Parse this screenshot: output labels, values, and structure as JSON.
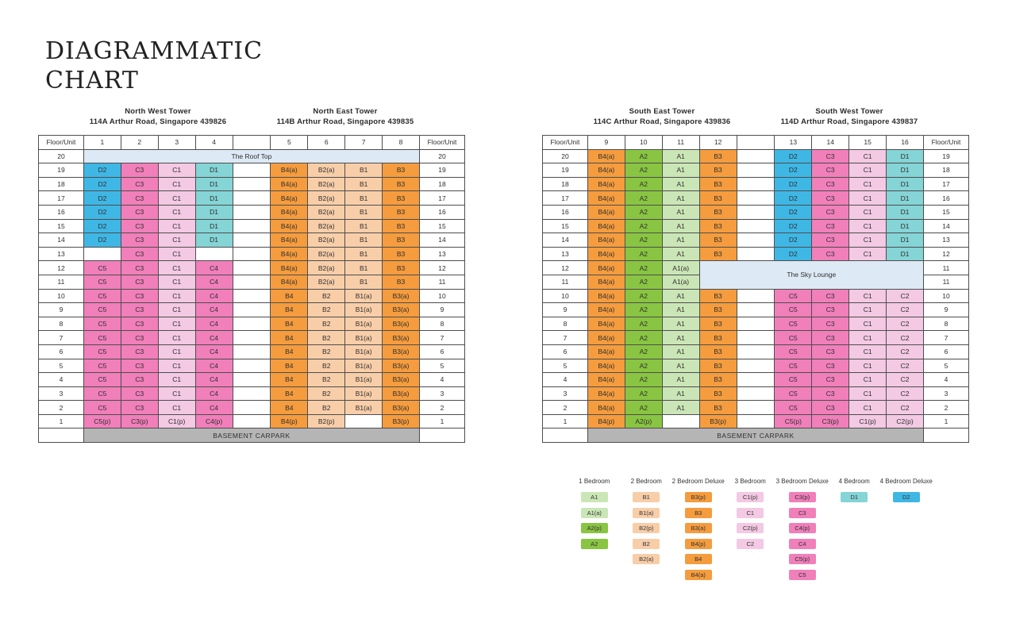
{
  "title": {
    "line1": "DIAGRAMMATIC",
    "line2": "CHART"
  },
  "palette": {
    "A1": "#cbe6b6",
    "A2": "#89c542",
    "B1": "#f8cea9",
    "B2": "#f8cea9",
    "B3": "#f59c3e",
    "B4": "#f59c3e",
    "C1": "#f3c9e3",
    "C2": "#f3c9e3",
    "C3": "#f07fba",
    "C4": "#f07fba",
    "C5": "#f07fba",
    "D1": "#85d4d6",
    "D2": "#3fb7e5",
    "banner": "#dde9f4",
    "basement": "#b5b5b5",
    "border": "#4d4d4d",
    "text": "#2f2f2f"
  },
  "floor_header": "Floor/Unit",
  "groups": [
    {
      "left_tower": {
        "name": "North West Tower",
        "address": "114A Arthur Road, Singapore 439826",
        "units": [
          "1",
          "2",
          "3",
          "4"
        ]
      },
      "right_tower": {
        "name": "North East Tower",
        "address": "114B Arthur Road, Singapore 439835",
        "units": [
          "5",
          "6",
          "7",
          "8"
        ]
      },
      "top_banner": {
        "label": "The Roof Top",
        "left_floor": "20",
        "right_floor": "20"
      },
      "rows": [
        {
          "lf": "19",
          "rf": "19",
          "left": [
            "D2",
            "C3",
            "C1",
            "D1"
          ],
          "right": [
            "B4(a)",
            "B2(a)",
            "B1",
            "B3"
          ]
        },
        {
          "lf": "18",
          "rf": "18",
          "left": [
            "D2",
            "C3",
            "C1",
            "D1"
          ],
          "right": [
            "B4(a)",
            "B2(a)",
            "B1",
            "B3"
          ]
        },
        {
          "lf": "17",
          "rf": "17",
          "left": [
            "D2",
            "C3",
            "C1",
            "D1"
          ],
          "right": [
            "B4(a)",
            "B2(a)",
            "B1",
            "B3"
          ]
        },
        {
          "lf": "16",
          "rf": "16",
          "left": [
            "D2",
            "C3",
            "C1",
            "D1"
          ],
          "right": [
            "B4(a)",
            "B2(a)",
            "B1",
            "B3"
          ]
        },
        {
          "lf": "15",
          "rf": "15",
          "left": [
            "D2",
            "C3",
            "C1",
            "D1"
          ],
          "right": [
            "B4(a)",
            "B2(a)",
            "B1",
            "B3"
          ]
        },
        {
          "lf": "14",
          "rf": "14",
          "left": [
            "D2",
            "C3",
            "C1",
            "D1"
          ],
          "right": [
            "B4(a)",
            "B2(a)",
            "B1",
            "B3"
          ]
        },
        {
          "lf": "13",
          "rf": "13",
          "left": [
            "",
            "C3",
            "C1",
            ""
          ],
          "right": [
            "B4(a)",
            "B2(a)",
            "B1",
            "B3"
          ]
        },
        {
          "lf": "12",
          "rf": "12",
          "left": [
            "C5",
            "C3",
            "C1",
            "C4"
          ],
          "right": [
            "B4(a)",
            "B2(a)",
            "B1",
            "B3"
          ]
        },
        {
          "lf": "11",
          "rf": "11",
          "left": [
            "C5",
            "C3",
            "C1",
            "C4"
          ],
          "right": [
            "B4(a)",
            "B2(a)",
            "B1",
            "B3"
          ]
        },
        {
          "lf": "10",
          "rf": "10",
          "left": [
            "C5",
            "C3",
            "C1",
            "C4"
          ],
          "right": [
            "B4",
            "B2",
            "B1(a)",
            "B3(a)"
          ]
        },
        {
          "lf": "9",
          "rf": "9",
          "left": [
            "C5",
            "C3",
            "C1",
            "C4"
          ],
          "right": [
            "B4",
            "B2",
            "B1(a)",
            "B3(a)"
          ]
        },
        {
          "lf": "8",
          "rf": "8",
          "left": [
            "C5",
            "C3",
            "C1",
            "C4"
          ],
          "right": [
            "B4",
            "B2",
            "B1(a)",
            "B3(a)"
          ]
        },
        {
          "lf": "7",
          "rf": "7",
          "left": [
            "C5",
            "C3",
            "C1",
            "C4"
          ],
          "right": [
            "B4",
            "B2",
            "B1(a)",
            "B3(a)"
          ]
        },
        {
          "lf": "6",
          "rf": "6",
          "left": [
            "C5",
            "C3",
            "C1",
            "C4"
          ],
          "right": [
            "B4",
            "B2",
            "B1(a)",
            "B3(a)"
          ]
        },
        {
          "lf": "5",
          "rf": "5",
          "left": [
            "C5",
            "C3",
            "C1",
            "C4"
          ],
          "right": [
            "B4",
            "B2",
            "B1(a)",
            "B3(a)"
          ]
        },
        {
          "lf": "4",
          "rf": "4",
          "left": [
            "C5",
            "C3",
            "C1",
            "C4"
          ],
          "right": [
            "B4",
            "B2",
            "B1(a)",
            "B3(a)"
          ]
        },
        {
          "lf": "3",
          "rf": "3",
          "left": [
            "C5",
            "C3",
            "C1",
            "C4"
          ],
          "right": [
            "B4",
            "B2",
            "B1(a)",
            "B3(a)"
          ]
        },
        {
          "lf": "2",
          "rf": "2",
          "left": [
            "C5",
            "C3",
            "C1",
            "C4"
          ],
          "right": [
            "B4",
            "B2",
            "B1(a)",
            "B3(a)"
          ]
        },
        {
          "lf": "1",
          "rf": "1",
          "left": [
            "C5(p)",
            "C3(p)",
            "C1(p)",
            "C4(p)"
          ],
          "right": [
            "B4(p)",
            "B2(p)",
            "",
            "B3(p)"
          ]
        }
      ],
      "basement": "BASEMENT CARPARK"
    },
    {
      "left_tower": {
        "name": "South East Tower",
        "address": "114C Arthur Road, Singapore 439836",
        "units": [
          "9",
          "10",
          "11",
          "12"
        ]
      },
      "right_tower": {
        "name": "South West Tower",
        "address": "114D Arthur Road, Singapore 439837",
        "units": [
          "13",
          "14",
          "15",
          "16"
        ]
      },
      "lounge_label": "The Sky Lounge",
      "rows": [
        {
          "lf": "20",
          "rf": "19",
          "left": [
            "B4(a)",
            "A2",
            "A1",
            "B3"
          ],
          "right": [
            "D2",
            "C3",
            "C1",
            "D1"
          ]
        },
        {
          "lf": "19",
          "rf": "18",
          "left": [
            "B4(a)",
            "A2",
            "A1",
            "B3"
          ],
          "right": [
            "D2",
            "C3",
            "C1",
            "D1"
          ]
        },
        {
          "lf": "18",
          "rf": "17",
          "left": [
            "B4(a)",
            "A2",
            "A1",
            "B3"
          ],
          "right": [
            "D2",
            "C3",
            "C1",
            "D1"
          ]
        },
        {
          "lf": "17",
          "rf": "16",
          "left": [
            "B4(a)",
            "A2",
            "A1",
            "B3"
          ],
          "right": [
            "D2",
            "C3",
            "C1",
            "D1"
          ]
        },
        {
          "lf": "16",
          "rf": "15",
          "left": [
            "B4(a)",
            "A2",
            "A1",
            "B3"
          ],
          "right": [
            "D2",
            "C3",
            "C1",
            "D1"
          ]
        },
        {
          "lf": "15",
          "rf": "14",
          "left": [
            "B4(a)",
            "A2",
            "A1",
            "B3"
          ],
          "right": [
            "D2",
            "C3",
            "C1",
            "D1"
          ]
        },
        {
          "lf": "14",
          "rf": "13",
          "left": [
            "B4(a)",
            "A2",
            "A1",
            "B3"
          ],
          "right": [
            "D2",
            "C3",
            "C1",
            "D1"
          ]
        },
        {
          "lf": "13",
          "rf": "12",
          "left": [
            "B4(a)",
            "A2",
            "A1",
            "B3"
          ],
          "right": [
            "D2",
            "C3",
            "C1",
            "D1"
          ]
        },
        {
          "lf": "12",
          "rf": "11",
          "left": [
            "B4(a)",
            "A2",
            "A1(a)"
          ],
          "lounge": "start"
        },
        {
          "lf": "11",
          "rf": "11",
          "left": [
            "B4(a)",
            "A2",
            "A1(a)"
          ],
          "lounge": "cont"
        },
        {
          "lf": "10",
          "rf": "10",
          "left": [
            "B4(a)",
            "A2",
            "A1",
            "B3"
          ],
          "right": [
            "C5",
            "C3",
            "C1",
            "C2"
          ]
        },
        {
          "lf": "9",
          "rf": "9",
          "left": [
            "B4(a)",
            "A2",
            "A1",
            "B3"
          ],
          "right": [
            "C5",
            "C3",
            "C1",
            "C2"
          ]
        },
        {
          "lf": "8",
          "rf": "8",
          "left": [
            "B4(a)",
            "A2",
            "A1",
            "B3"
          ],
          "right": [
            "C5",
            "C3",
            "C1",
            "C2"
          ]
        },
        {
          "lf": "7",
          "rf": "7",
          "left": [
            "B4(a)",
            "A2",
            "A1",
            "B3"
          ],
          "right": [
            "C5",
            "C3",
            "C1",
            "C2"
          ]
        },
        {
          "lf": "6",
          "rf": "6",
          "left": [
            "B4(a)",
            "A2",
            "A1",
            "B3"
          ],
          "right": [
            "C5",
            "C3",
            "C1",
            "C2"
          ]
        },
        {
          "lf": "5",
          "rf": "5",
          "left": [
            "B4(a)",
            "A2",
            "A1",
            "B3"
          ],
          "right": [
            "C5",
            "C3",
            "C1",
            "C2"
          ]
        },
        {
          "lf": "4",
          "rf": "4",
          "left": [
            "B4(a)",
            "A2",
            "A1",
            "B3"
          ],
          "right": [
            "C5",
            "C3",
            "C1",
            "C2"
          ]
        },
        {
          "lf": "3",
          "rf": "3",
          "left": [
            "B4(a)",
            "A2",
            "A1",
            "B3"
          ],
          "right": [
            "C5",
            "C3",
            "C1",
            "C2"
          ]
        },
        {
          "lf": "2",
          "rf": "2",
          "left": [
            "B4(a)",
            "A2",
            "A1",
            "B3"
          ],
          "right": [
            "C5",
            "C3",
            "C1",
            "C2"
          ]
        },
        {
          "lf": "1",
          "rf": "1",
          "left": [
            "B4(p)",
            "A2(p)",
            "",
            "B3(p)"
          ],
          "right": [
            "C5(p)",
            "C3(p)",
            "C1(p)",
            "C2(p)"
          ]
        }
      ],
      "basement": "BASEMENT CARPARK"
    }
  ],
  "legend": {
    "groups": [
      {
        "label": "1 Bedroom",
        "items": [
          "A1",
          "A1(a)",
          "A2(p)",
          "A2"
        ]
      },
      {
        "label": "2 Bedroom",
        "items": [
          "B1",
          "B1(a)",
          "B2(p)",
          "B2",
          "B2(a)"
        ]
      },
      {
        "label": "2 Bedroom Deluxe",
        "items": [
          "B3(p)",
          "B3",
          "B3(a)",
          "B4(p)",
          "B4",
          "B4(a)"
        ]
      },
      {
        "label": "3 Bedroom",
        "items": [
          "C1(p)",
          "C1",
          "C2(p)",
          "C2"
        ]
      },
      {
        "label": "3 Bedroom Deluxe",
        "items": [
          "C3(p)",
          "C3",
          "C4(p)",
          "C4",
          "C5(p)",
          "C5"
        ]
      },
      {
        "label": "4 Bedroom",
        "items": [
          "D1"
        ]
      },
      {
        "label": "4 Bedroom Deluxe",
        "items": [
          "D2"
        ]
      }
    ]
  }
}
